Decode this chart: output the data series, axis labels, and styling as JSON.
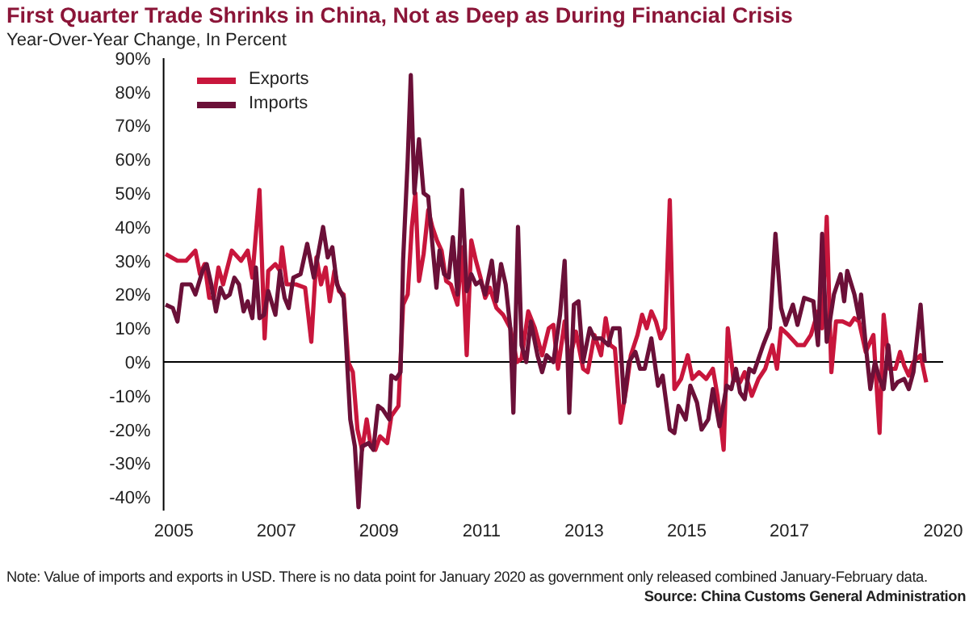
{
  "chart_data": {
    "type": "line",
    "title": "First Quarter Trade Shrinks in China, Not as Deep as During Financial Crisis",
    "subtitle": "Year-Over-Year Change, In Percent",
    "annotations": [
      "Note: Value of imports and exports in USD. There is no data point for January 2020 as government only released combined January-February data.",
      "Source: China Customs General Administration"
    ],
    "xlim": [
      2004.8,
      2020
    ],
    "xticks": [
      2005,
      2007,
      2009,
      2011,
      2013,
      2015,
      2017,
      2020
    ],
    "ylim": [
      -44,
      90
    ],
    "yticks": [
      {
        "value": -40,
        "label": "-40%"
      },
      {
        "value": -30,
        "label": "-30%"
      },
      {
        "value": -20,
        "label": "-20%"
      },
      {
        "value": -10,
        "label": "-10%"
      },
      {
        "value": 0,
        "label": "0%"
      },
      {
        "value": 10,
        "label": "10%"
      },
      {
        "value": 20,
        "label": "20%"
      },
      {
        "value": 30,
        "label": "30%"
      },
      {
        "value": 40,
        "label": "40%"
      },
      {
        "value": 50,
        "label": "50%"
      },
      {
        "value": 60,
        "label": "60%"
      },
      {
        "value": 70,
        "label": "70%"
      },
      {
        "value": 80,
        "label": "80%"
      },
      {
        "value": 90,
        "label": "90%"
      }
    ],
    "ref_lines": [
      {
        "axis": "y",
        "value": 0,
        "color": "#000000"
      }
    ],
    "grid": false,
    "legend": "top left",
    "marker": "none",
    "line_style": "solid",
    "series": [
      {
        "name": "Exports",
        "color": "#c8163c",
        "x": [
          2004.84,
          2005.07,
          2005.24,
          2005.42,
          2005.51,
          2005.6,
          2005.69,
          2005.78,
          2005.87,
          2005.96,
          2006.13,
          2006.31,
          2006.44,
          2006.53,
          2006.67,
          2006.77,
          2006.84,
          2006.98,
          2007.07,
          2007.11,
          2007.2,
          2007.38,
          2007.56,
          2007.68,
          2007.78,
          2007.87,
          2007.96,
          2008.04,
          2008.13,
          2008.22,
          2008.31,
          2008.4,
          2008.49,
          2008.58,
          2008.67,
          2008.76,
          2008.84,
          2008.93,
          2009.02,
          2009.16,
          2009.24,
          2009.38,
          2009.47,
          2009.56,
          2009.64,
          2009.71,
          2009.78,
          2009.87,
          2009.96,
          2010.04,
          2010.13,
          2010.22,
          2010.31,
          2010.4,
          2010.53,
          2010.62,
          2010.71,
          2010.8,
          2010.89,
          2010.98,
          2011.07,
          2011.16,
          2011.29,
          2011.42,
          2011.56,
          2011.69,
          2011.78,
          2011.91,
          2012.04,
          2012.18,
          2012.31,
          2012.4,
          2012.49,
          2012.62,
          2012.71,
          2012.84,
          2012.98,
          2013.07,
          2013.2,
          2013.33,
          2013.42,
          2013.51,
          2013.6,
          2013.71,
          2013.82,
          2013.91,
          2014.04,
          2014.13,
          2014.22,
          2014.31,
          2014.4,
          2014.49,
          2014.58,
          2014.67,
          2014.76,
          2014.89,
          2015.02,
          2015.11,
          2015.24,
          2015.38,
          2015.51,
          2015.6,
          2015.72,
          2015.8,
          2015.91,
          2016.04,
          2016.13,
          2016.27,
          2016.4,
          2016.53,
          2016.67,
          2016.76,
          2016.84,
          2016.98,
          2017.16,
          2017.29,
          2017.42,
          2017.56,
          2017.64,
          2017.73,
          2017.82,
          2017.91,
          2018.04,
          2018.18,
          2018.27,
          2018.36,
          2018.49,
          2018.64,
          2018.76,
          2018.84,
          2018.95,
          2019.07,
          2019.16,
          2019.24,
          2019.33,
          2019.42,
          2019.56,
          2019.67
        ],
        "values": [
          32,
          30,
          30,
          33,
          26,
          29,
          19,
          19,
          28,
          23,
          33,
          30,
          33,
          25,
          51,
          7,
          27,
          29,
          27,
          34,
          23,
          23,
          22,
          6,
          31,
          23,
          28,
          18,
          27,
          21,
          20,
          0,
          -3,
          -20,
          -26,
          -17,
          -25,
          -26,
          -22,
          -24,
          -16,
          -13,
          17,
          20,
          40,
          50,
          24,
          32,
          45,
          40,
          36,
          33,
          24,
          23,
          17,
          34,
          2,
          36,
          30,
          25,
          19,
          22,
          16,
          14,
          10,
          0,
          1,
          15,
          10,
          2,
          10,
          11,
          -2,
          12,
          0,
          9,
          -2,
          -3,
          8,
          2,
          13,
          5,
          4,
          -18,
          -8,
          2,
          8,
          14,
          10,
          15,
          12,
          7,
          10,
          48,
          -8,
          -5,
          2,
          -5,
          -3,
          -5,
          -2,
          -10,
          -26,
          10,
          -5,
          -6,
          -3,
          -10,
          -5,
          -2,
          5,
          -2,
          10,
          8,
          5,
          5,
          8,
          15,
          10,
          43,
          -3,
          12,
          12,
          11,
          13,
          12,
          3,
          8,
          -21,
          14,
          -2,
          -2,
          3,
          -1,
          -4,
          0,
          2,
          -6
        ]
      },
      {
        "name": "Imports",
        "color": "#6b1038",
        "x": [
          2004.84,
          2004.98,
          2005.07,
          2005.16,
          2005.33,
          2005.42,
          2005.56,
          2005.64,
          2005.73,
          2005.82,
          2005.91,
          2006.0,
          2006.09,
          2006.18,
          2006.27,
          2006.36,
          2006.44,
          2006.53,
          2006.6,
          2006.67,
          2006.76,
          2006.84,
          2006.98,
          2007.07,
          2007.16,
          2007.24,
          2007.33,
          2007.47,
          2007.6,
          2007.73,
          2007.91,
          2008.0,
          2008.09,
          2008.18,
          2008.31,
          2008.4,
          2008.44,
          2008.53,
          2008.6,
          2008.67,
          2008.8,
          2008.89,
          2008.98,
          2009.07,
          2009.2,
          2009.24,
          2009.33,
          2009.42,
          2009.47,
          2009.56,
          2009.62,
          2009.69,
          2009.78,
          2009.87,
          2009.96,
          2010.04,
          2010.12,
          2010.18,
          2010.27,
          2010.36,
          2010.44,
          2010.53,
          2010.62,
          2010.71,
          2010.8,
          2010.89,
          2010.98,
          2011.07,
          2011.2,
          2011.29,
          2011.38,
          2011.47,
          2011.56,
          2011.62,
          2011.71,
          2011.78,
          2011.87,
          2011.96,
          2012.09,
          2012.18,
          2012.27,
          2012.4,
          2012.53,
          2012.62,
          2012.71,
          2012.8,
          2012.89,
          2012.98,
          2013.11,
          2013.2,
          2013.33,
          2013.47,
          2013.56,
          2013.69,
          2013.78,
          2013.87,
          2014.0,
          2014.09,
          2014.18,
          2014.31,
          2014.44,
          2014.53,
          2014.67,
          2014.76,
          2014.84,
          2014.98,
          2015.07,
          2015.2,
          2015.29,
          2015.42,
          2015.51,
          2015.64,
          2015.78,
          2015.87,
          2015.96,
          2016.04,
          2016.13,
          2016.22,
          2016.31,
          2016.49,
          2016.62,
          2016.73,
          2016.84,
          2016.93,
          2017.07,
          2017.16,
          2017.29,
          2017.47,
          2017.56,
          2017.64,
          2017.73,
          2017.87,
          2018.0,
          2018.07,
          2018.13,
          2018.27,
          2018.36,
          2018.4,
          2018.49,
          2018.58,
          2018.67,
          2018.76,
          2018.84,
          2018.93,
          2019.02,
          2019.11,
          2019.24,
          2019.33,
          2019.42,
          2019.56,
          2019.64
        ],
        "values": [
          17,
          16,
          12,
          23,
          23,
          20,
          27,
          29,
          23,
          15,
          22,
          19,
          20,
          25,
          23,
          15,
          18,
          13,
          28,
          13,
          14,
          21,
          14,
          27,
          19,
          16,
          25,
          26,
          35,
          25,
          40,
          31,
          34,
          23,
          19,
          -6,
          -17,
          -25,
          -43,
          -25,
          -24,
          -26,
          -13,
          -14,
          -17,
          -4,
          -5,
          -3,
          30,
          60,
          85,
          50,
          66,
          50,
          49,
          35,
          22,
          33,
          26,
          25,
          37,
          20,
          51,
          21,
          26,
          23,
          24,
          20,
          30,
          18,
          29,
          23,
          10,
          -15,
          40,
          5,
          0,
          12,
          2,
          -3,
          2,
          0,
          14,
          30,
          -15,
          17,
          18,
          0,
          10,
          7,
          7,
          5,
          10,
          10,
          -12,
          0,
          3,
          -2,
          -2,
          7,
          -7,
          -4,
          -20,
          -21,
          -13,
          -17,
          -7,
          -12,
          -20,
          -17,
          -8,
          -19,
          -7,
          -8,
          -2,
          -9,
          -11,
          -2,
          -3,
          5,
          10,
          38,
          16,
          11,
          17,
          11,
          19,
          18,
          5,
          38,
          6,
          20,
          26,
          18,
          27,
          20,
          13,
          20,
          5,
          -8,
          0,
          -5,
          -8,
          5,
          -8,
          -6,
          -5,
          -8,
          -3,
          17,
          0
        ]
      }
    ]
  }
}
